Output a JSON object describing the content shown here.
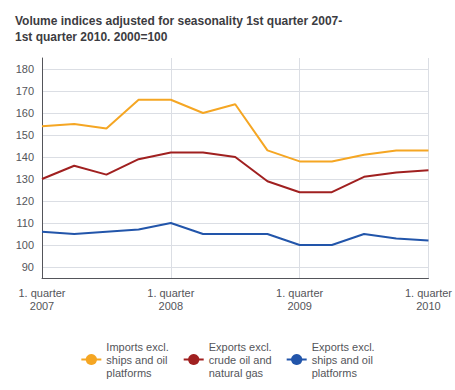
{
  "chart_data": {
    "type": "line",
    "title": "Volume indices adjusted for seasonality 1st quarter 2007-\n1st quarter 2010. 2000=100",
    "categories": [
      "1. quarter\n2007",
      null,
      null,
      null,
      "1. quarter\n2008",
      null,
      null,
      null,
      "1. quarter\n2009",
      null,
      null,
      null,
      "1. quarter\n2010"
    ],
    "series": [
      {
        "name": "Imports excl.\nships and oil\nplatforms",
        "color": "#f5a623",
        "values": [
          154,
          155,
          153,
          166,
          166,
          160,
          164,
          143,
          138,
          138,
          141,
          143,
          143
        ]
      },
      {
        "name": "Exports excl.\ncrude oil and\nnatural gas",
        "color": "#a02020",
        "values": [
          130,
          136,
          132,
          139,
          142,
          142,
          140,
          129,
          124,
          124,
          131,
          133,
          134
        ]
      },
      {
        "name": "Exports excl.\nships and oil\nplatforms",
        "color": "#2255aa",
        "values": [
          106,
          105,
          106,
          107,
          110,
          105,
          105,
          105,
          100,
          100,
          105,
          103,
          102
        ]
      }
    ],
    "ylim": [
      85,
      185
    ],
    "yticks": [
      90,
      100,
      110,
      120,
      130,
      140,
      150,
      160,
      170,
      180
    ],
    "grid": true,
    "legend": "bottom"
  }
}
